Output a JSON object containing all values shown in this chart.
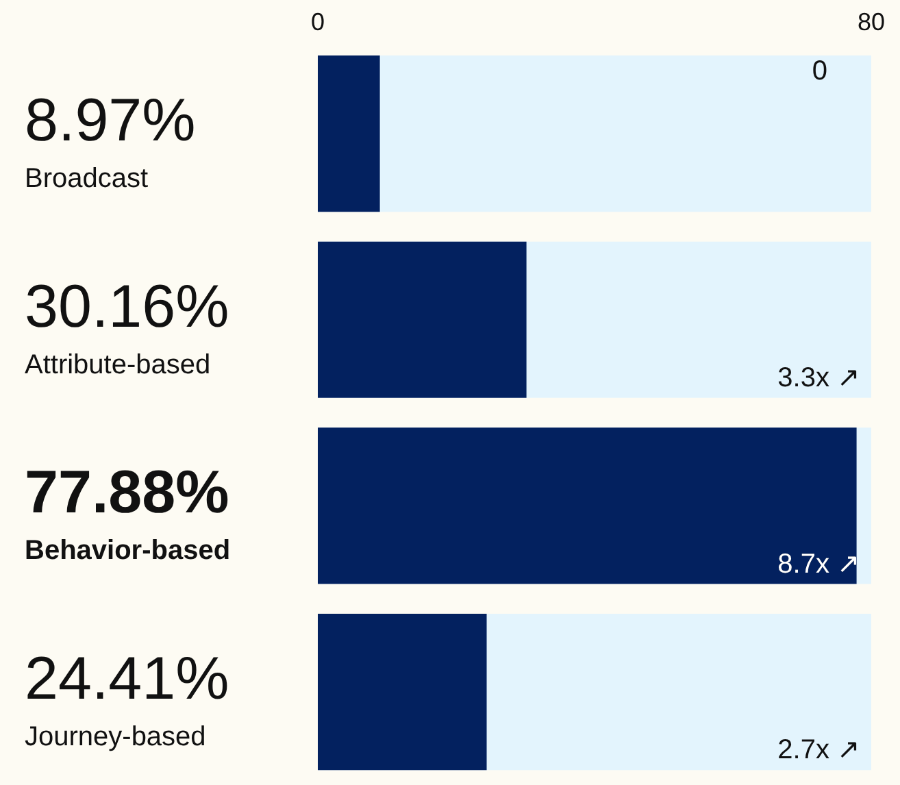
{
  "chart_data": {
    "type": "bar",
    "orientation": "horizontal",
    "categories": [
      "Broadcast",
      "Attribute-based",
      "Behavior-based",
      "Journey-based"
    ],
    "values": [
      8.97,
      30.16,
      77.88,
      24.41
    ],
    "value_labels": [
      "8.97%",
      "30.16%",
      "77.88%",
      "24.41%"
    ],
    "color": "#03215f",
    "xlim": [
      0,
      80
    ],
    "xticks": [
      0,
      80
    ],
    "grid": false,
    "legend": false,
    "annotations": [
      "0",
      "3.3x ↗",
      "8.7x ↗",
      "2.7x ↗"
    ]
  }
}
